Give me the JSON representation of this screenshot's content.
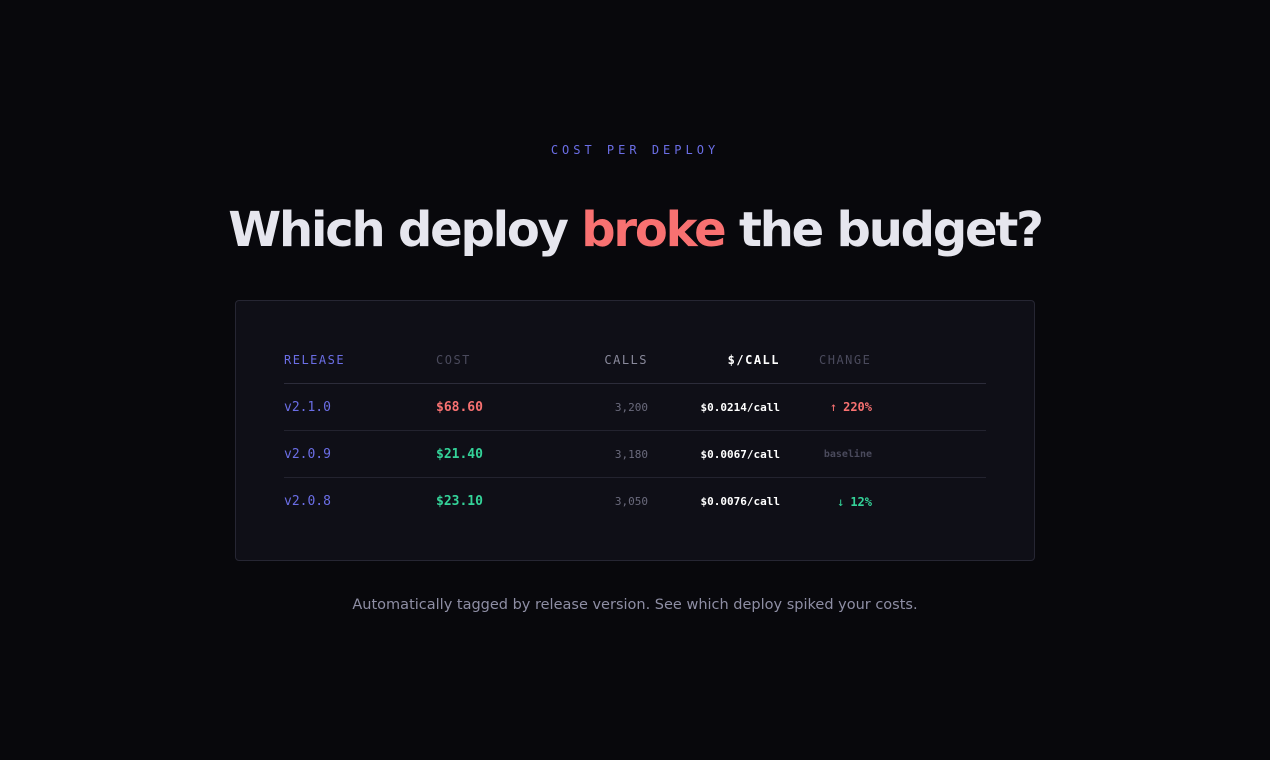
{
  "eyebrow": "COST PER DEPLOY",
  "headline": {
    "before": "Which deploy ",
    "accent": "broke",
    "after": " the budget?"
  },
  "table": {
    "headers": {
      "release": "RELEASE",
      "cost": "COST",
      "calls": "CALLS",
      "per_call": "$/CALL",
      "change": "CHANGE"
    },
    "rows": [
      {
        "release": "v2.1.0",
        "cost": "$68.60",
        "cost_color": "#f87171",
        "calls": "3,200",
        "per_call": "$0.0214/call",
        "change_arrow": "↑",
        "change": "220%",
        "change_color": "#f87171",
        "status": "increase"
      },
      {
        "release": "v2.0.9",
        "cost": "$21.40",
        "cost_color": "#34d399",
        "calls": "3,180",
        "per_call": "$0.0067/call",
        "change_arrow": "",
        "change": "baseline",
        "change_color": "#4a4a5c",
        "status": "baseline"
      },
      {
        "release": "v2.0.8",
        "cost": "$23.10",
        "cost_color": "#34d399",
        "calls": "3,050",
        "per_call": "$0.0076/call",
        "change_arrow": "↓",
        "change": "12%",
        "change_color": "#34d399",
        "status": "decrease"
      }
    ]
  },
  "footer": "Automatically tagged by release version. See which deploy spiked your costs.",
  "colors": {
    "background": "#08080c",
    "card": "#0f0f17",
    "accent": "#6b6ee6",
    "danger": "#f87171",
    "success": "#34d399"
  }
}
